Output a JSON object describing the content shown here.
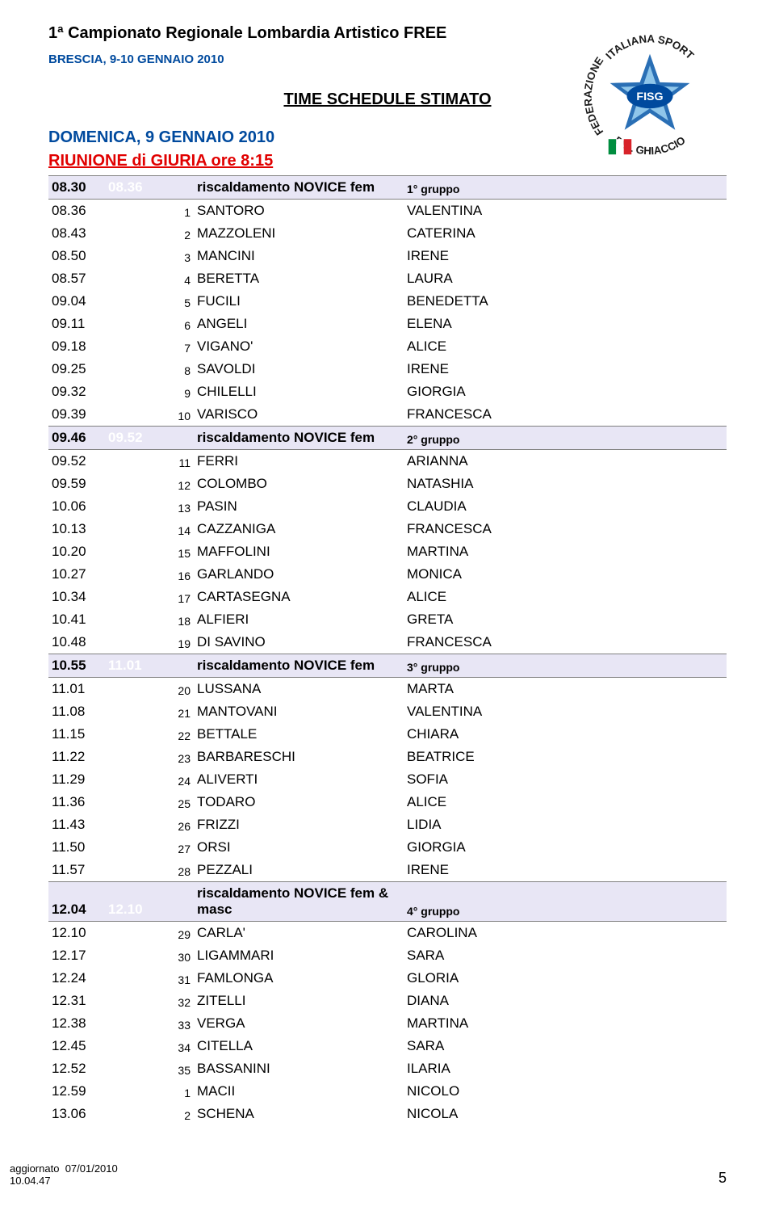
{
  "header": {
    "title": "1ª Campionato Regionale Lombardia Artistico FREE",
    "subtitle": "BRESCIA, 9-10 GENNAIO 2010",
    "schedule_title": "TIME SCHEDULE STIMATO",
    "day": "DOMENICA, 9 GENNAIO 2010",
    "meeting": "RIUNIONE di GIURIA ore 8:15"
  },
  "logo": {
    "text_top": "ITALIANA SPORT",
    "text_bottom": "DEL GHIACCIO",
    "text_left": "FEDERAZIONE",
    "badge": "FISG",
    "colors": {
      "star_outer": "#2a6fb5",
      "star_inner": "#8fc6ea",
      "badge_bg": "#004a9e",
      "flag_green": "#008d3f",
      "flag_red": "#d8232a"
    }
  },
  "groups": [
    {
      "t1": "08.30",
      "t2": "08.36",
      "label": "riscaldamento NOVICE fem",
      "grp": "1° gruppo",
      "rows": [
        {
          "t": "08.36",
          "n": "1",
          "s": "SANTORO",
          "f": "VALENTINA"
        },
        {
          "t": "08.43",
          "n": "2",
          "s": "MAZZOLENI",
          "f": "CATERINA"
        },
        {
          "t": "08.50",
          "n": "3",
          "s": "MANCINI",
          "f": "IRENE"
        },
        {
          "t": "08.57",
          "n": "4",
          "s": "BERETTA",
          "f": "LAURA"
        },
        {
          "t": "09.04",
          "n": "5",
          "s": "FUCILI",
          "f": "BENEDETTA"
        },
        {
          "t": "09.11",
          "n": "6",
          "s": "ANGELI",
          "f": "ELENA"
        },
        {
          "t": "09.18",
          "n": "7",
          "s": "VIGANO'",
          "f": "ALICE"
        },
        {
          "t": "09.25",
          "n": "8",
          "s": "SAVOLDI",
          "f": "IRENE"
        },
        {
          "t": "09.32",
          "n": "9",
          "s": "CHILELLI",
          "f": "GIORGIA"
        },
        {
          "t": "09.39",
          "n": "10",
          "s": "VARISCO",
          "f": "FRANCESCA"
        }
      ]
    },
    {
      "t1": "09.46",
      "t2": "09.52",
      "label": "riscaldamento NOVICE fem",
      "grp": "2° gruppo",
      "rows": [
        {
          "t": "09.52",
          "n": "11",
          "s": "FERRI",
          "f": "ARIANNA"
        },
        {
          "t": "09.59",
          "n": "12",
          "s": "COLOMBO",
          "f": "NATASHIA"
        },
        {
          "t": "10.06",
          "n": "13",
          "s": "PASIN",
          "f": "CLAUDIA"
        },
        {
          "t": "10.13",
          "n": "14",
          "s": "CAZZANIGA",
          "f": "FRANCESCA"
        },
        {
          "t": "10.20",
          "n": "15",
          "s": "MAFFOLINI",
          "f": "MARTINA"
        },
        {
          "t": "10.27",
          "n": "16",
          "s": "GARLANDO",
          "f": "MONICA"
        },
        {
          "t": "10.34",
          "n": "17",
          "s": "CARTASEGNA",
          "f": "ALICE"
        },
        {
          "t": "10.41",
          "n": "18",
          "s": "ALFIERI",
          "f": "GRETA"
        },
        {
          "t": "10.48",
          "n": "19",
          "s": "DI SAVINO",
          "f": "FRANCESCA"
        }
      ]
    },
    {
      "t1": "10.55",
      "t2": "11.01",
      "label": "riscaldamento NOVICE fem",
      "grp": "3° gruppo",
      "rows": [
        {
          "t": "11.01",
          "n": "20",
          "s": "LUSSANA",
          "f": "MARTA"
        },
        {
          "t": "11.08",
          "n": "21",
          "s": "MANTOVANI",
          "f": "VALENTINA"
        },
        {
          "t": "11.15",
          "n": "22",
          "s": "BETTALE",
          "f": "CHIARA"
        },
        {
          "t": "11.22",
          "n": "23",
          "s": "BARBARESCHI",
          "f": "BEATRICE"
        },
        {
          "t": "11.29",
          "n": "24",
          "s": "ALIVERTI",
          "f": "SOFIA"
        },
        {
          "t": "11.36",
          "n": "25",
          "s": "TODARO",
          "f": "ALICE"
        },
        {
          "t": "11.43",
          "n": "26",
          "s": "FRIZZI",
          "f": "LIDIA"
        },
        {
          "t": "11.50",
          "n": "27",
          "s": "ORSI",
          "f": "GIORGIA"
        },
        {
          "t": "11.57",
          "n": "28",
          "s": "PEZZALI",
          "f": "IRENE"
        }
      ]
    },
    {
      "t1": "12.04",
      "t2": "12.10",
      "label": "riscaldamento NOVICE fem & masc",
      "grp": "4° gruppo",
      "rows": [
        {
          "t": "12.10",
          "n": "29",
          "s": "CARLA'",
          "f": "CAROLINA"
        },
        {
          "t": "12.17",
          "n": "30",
          "s": "LIGAMMARI",
          "f": "SARA"
        },
        {
          "t": "12.24",
          "n": "31",
          "s": "FAMLONGA",
          "f": "GLORIA"
        },
        {
          "t": "12.31",
          "n": "32",
          "s": "ZITELLI",
          "f": "DIANA"
        },
        {
          "t": "12.38",
          "n": "33",
          "s": "VERGA",
          "f": "MARTINA"
        },
        {
          "t": "12.45",
          "n": "34",
          "s": "CITELLA",
          "f": "SARA"
        },
        {
          "t": "12.52",
          "n": "35",
          "s": "BASSANINI",
          "f": "ILARIA"
        },
        {
          "t": "12.59",
          "n": "1",
          "s": "MACII",
          "f": "NICOLO"
        },
        {
          "t": "13.06",
          "n": "2",
          "s": "SCHENA",
          "f": "NICOLA"
        }
      ]
    }
  ],
  "footer": {
    "updated_label": "aggiornato",
    "updated_date": "07/01/2010",
    "updated_time": "10.04.47",
    "page": "5"
  }
}
